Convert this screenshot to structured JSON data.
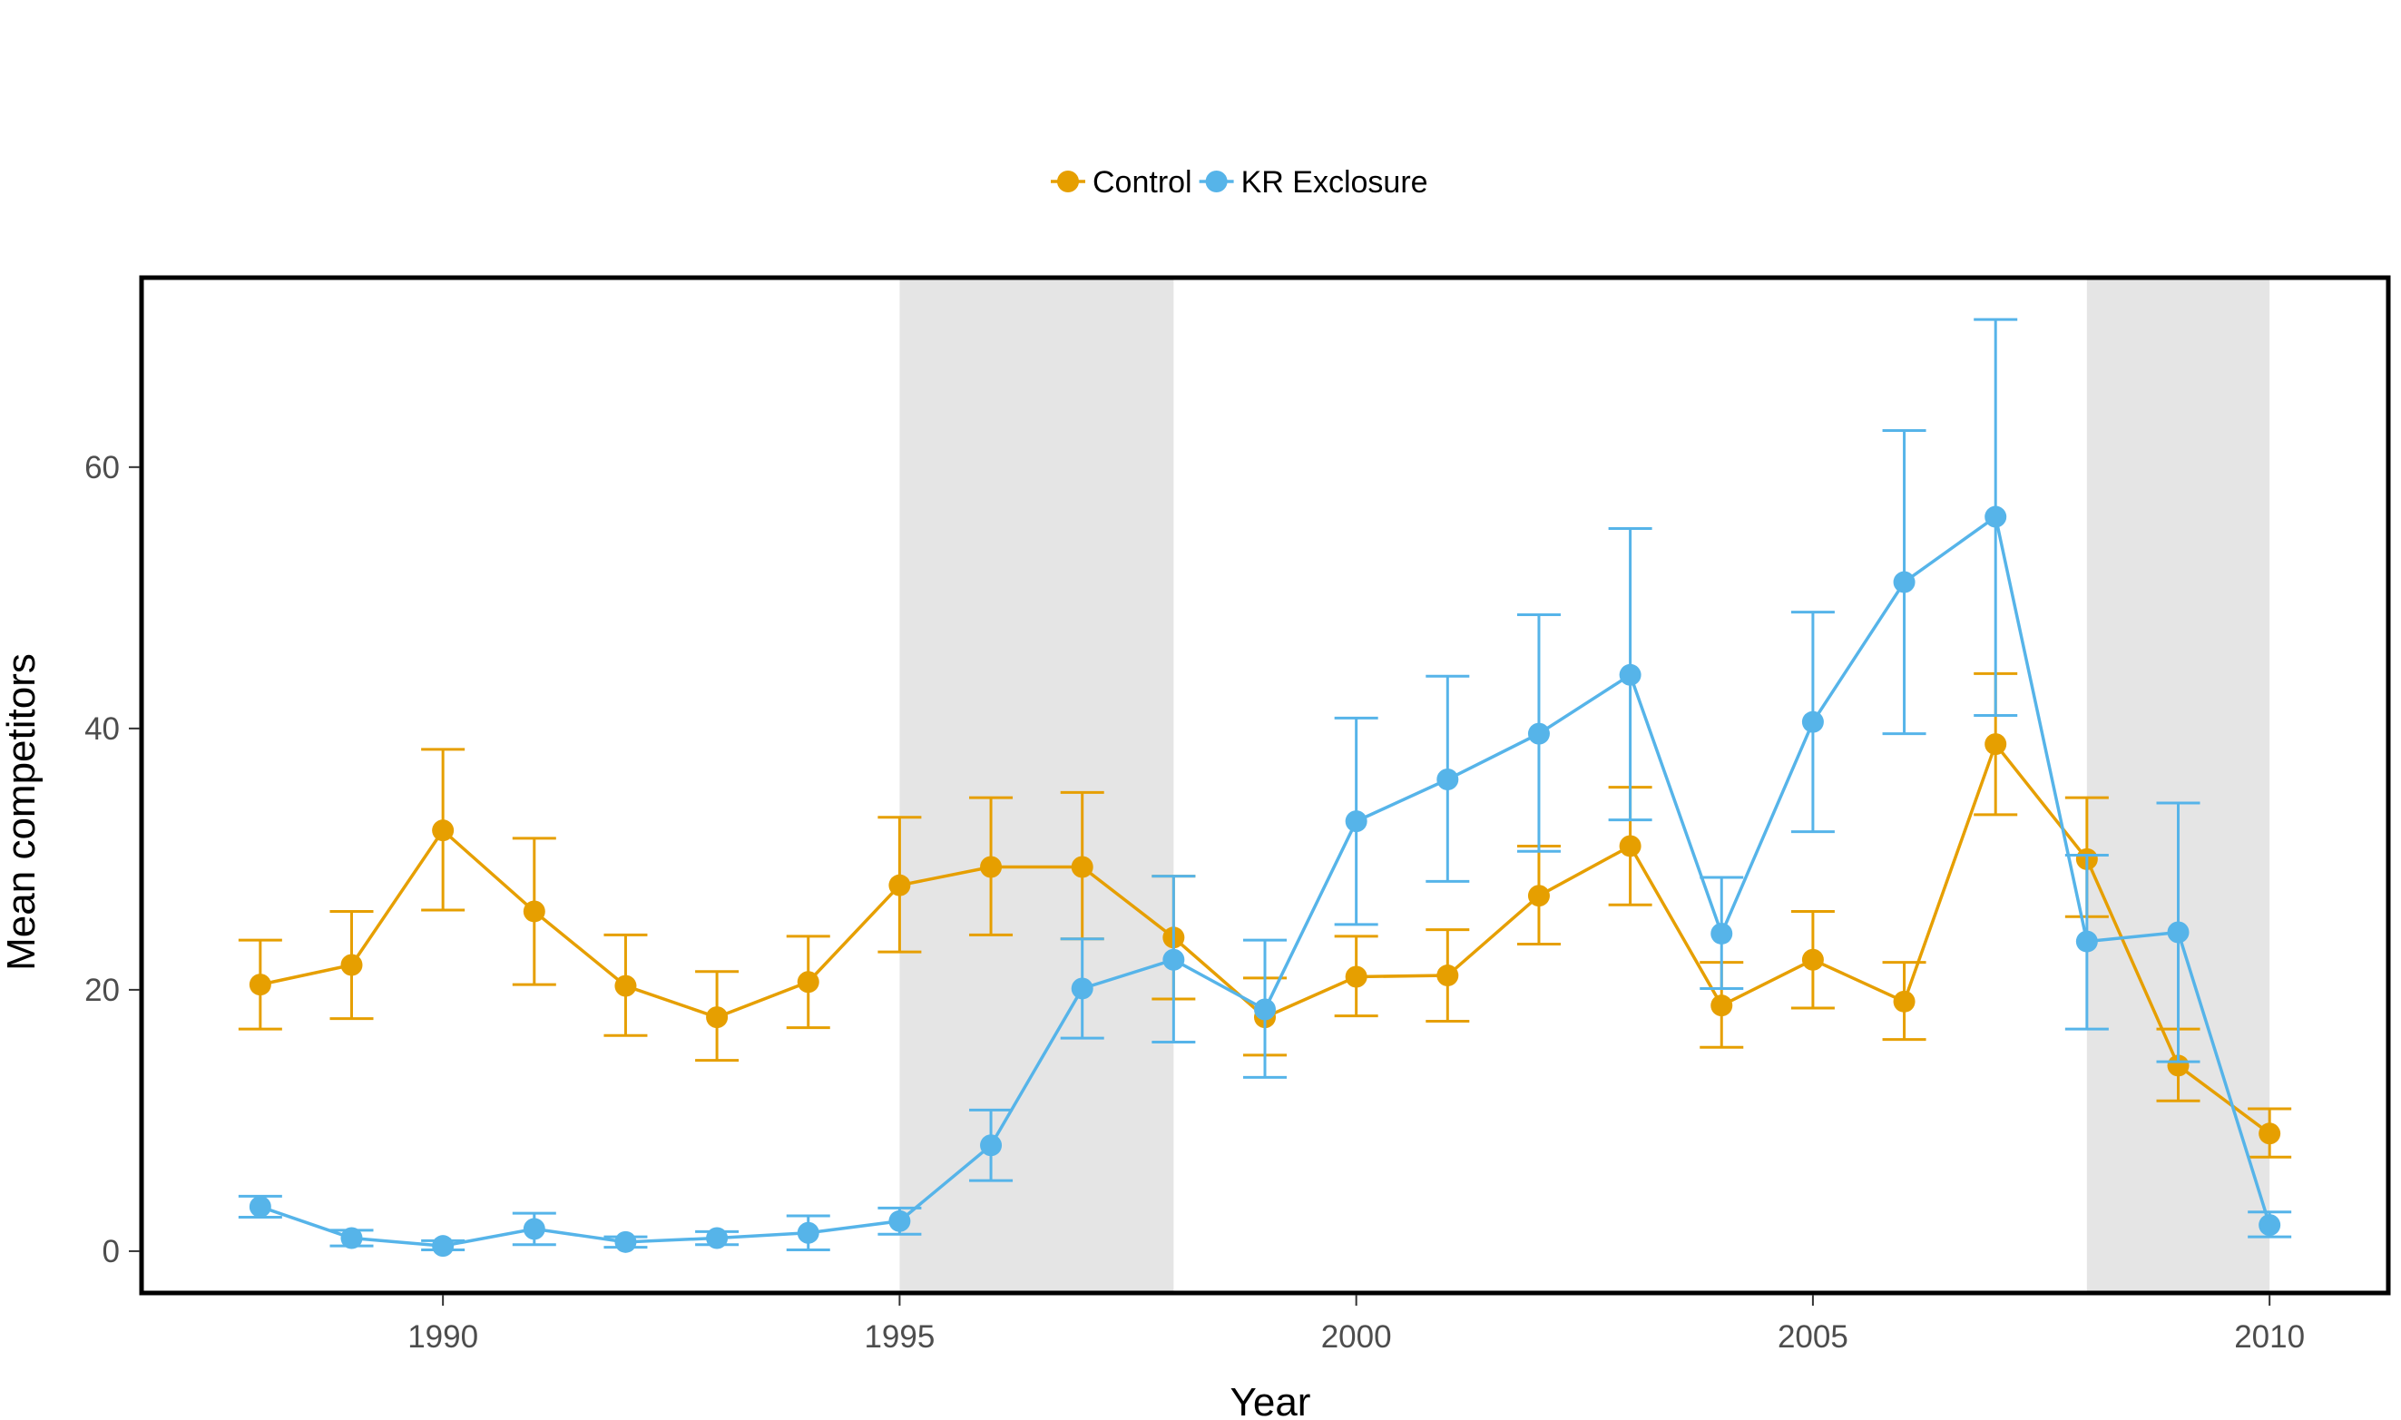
{
  "chart_data": {
    "type": "line",
    "xlabel": "Year",
    "ylabel": "Mean competitors",
    "xlim": [
      1986.7,
      2011.3
    ],
    "ylim": [
      -3.2,
      74.5
    ],
    "x_ticks": [
      1990,
      1995,
      2000,
      2005,
      2010
    ],
    "y_ticks": [
      0,
      20,
      40,
      60
    ],
    "grid": false,
    "legend_position": "top",
    "shaded_periods": [
      [
        1995,
        1998
      ],
      [
        2008,
        2010
      ]
    ],
    "shade_color": "#e5e5e5",
    "series": [
      {
        "name": "Control",
        "color": "#e69f00",
        "x": [
          1988,
          1989,
          1990,
          1991,
          1992,
          1993,
          1994,
          1995,
          1996,
          1997,
          1998,
          1999,
          2000,
          2001,
          2002,
          2003,
          2004,
          2005,
          2006,
          2007,
          2008,
          2009,
          2010
        ],
        "y": [
          20.4,
          21.9,
          32.2,
          26.0,
          20.3,
          17.9,
          20.6,
          28.0,
          29.4,
          29.4,
          24.0,
          17.9,
          21.0,
          21.1,
          27.2,
          31.0,
          18.8,
          22.3,
          19.1,
          38.8,
          30.0,
          14.2,
          9.0
        ],
        "y_low": [
          17.0,
          17.8,
          26.1,
          20.4,
          16.5,
          14.6,
          17.1,
          22.9,
          24.2,
          23.9,
          19.3,
          15.0,
          18.0,
          17.6,
          23.5,
          26.5,
          15.6,
          18.6,
          16.2,
          33.4,
          25.6,
          11.5,
          7.2
        ],
        "y_high": [
          23.8,
          26.0,
          38.4,
          31.6,
          24.2,
          21.4,
          24.1,
          33.2,
          34.7,
          35.1,
          28.7,
          20.9,
          24.1,
          24.6,
          31.0,
          35.5,
          22.1,
          26.0,
          22.1,
          44.2,
          34.7,
          17.0,
          10.9
        ]
      },
      {
        "name": "KR Exclosure",
        "color": "#56b4e9",
        "x": [
          1988,
          1989,
          1990,
          1991,
          1992,
          1993,
          1994,
          1995,
          1996,
          1997,
          1998,
          1999,
          2000,
          2001,
          2002,
          2003,
          2004,
          2005,
          2006,
          2007,
          2008,
          2009,
          2010
        ],
        "y": [
          3.4,
          1.0,
          0.4,
          1.7,
          0.7,
          1.0,
          1.4,
          2.3,
          8.1,
          20.1,
          22.3,
          18.5,
          32.9,
          36.1,
          39.6,
          44.1,
          24.3,
          40.5,
          51.2,
          56.2,
          23.7,
          24.4,
          2.0
        ],
        "y_low": [
          2.6,
          0.4,
          0.1,
          0.5,
          0.3,
          0.5,
          0.1,
          1.3,
          5.4,
          16.3,
          16.0,
          13.3,
          25.0,
          28.3,
          30.6,
          33.0,
          20.1,
          32.1,
          39.6,
          41.0,
          17.0,
          14.5,
          1.1
        ],
        "y_high": [
          4.2,
          1.6,
          0.8,
          2.9,
          1.1,
          1.5,
          2.7,
          3.3,
          10.8,
          23.9,
          28.7,
          23.8,
          40.8,
          44.0,
          48.7,
          55.3,
          28.6,
          48.9,
          62.8,
          71.3,
          30.3,
          34.3,
          3.0
        ]
      }
    ]
  }
}
